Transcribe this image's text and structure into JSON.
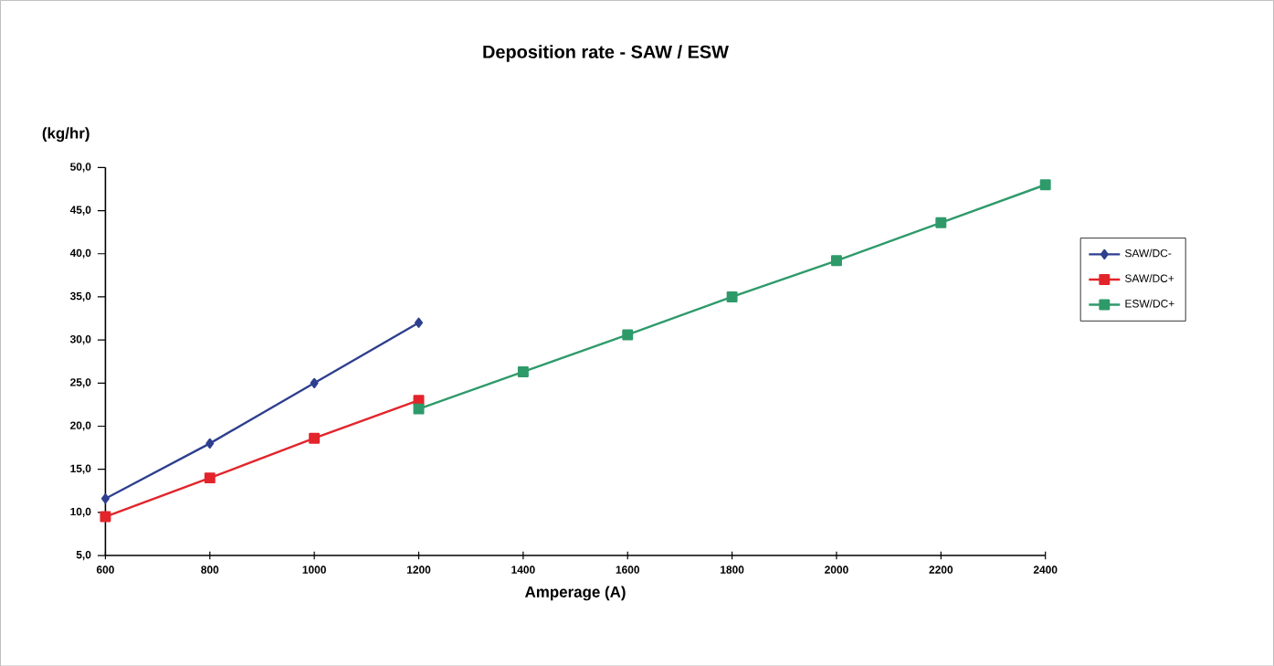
{
  "chart_data": {
    "type": "line",
    "title": "Deposition rate -  SAW / ESW",
    "xlabel": "Amperage (A)",
    "ylabel": "(kg/hr)",
    "xlim": [
      600,
      2400
    ],
    "xticks": [
      600,
      800,
      1000,
      1200,
      1400,
      1600,
      1800,
      2000,
      2200,
      2400
    ],
    "ylim": [
      5,
      50
    ],
    "yticks": [
      {
        "value": 5,
        "label": "5,0"
      },
      {
        "value": 10,
        "label": "10,0"
      },
      {
        "value": 15,
        "label": "15,0"
      },
      {
        "value": 20,
        "label": "20,0"
      },
      {
        "value": 25,
        "label": "25,0"
      },
      {
        "value": 30,
        "label": "30,0"
      },
      {
        "value": 35,
        "label": "35,0"
      },
      {
        "value": 40,
        "label": "40,0"
      },
      {
        "value": 45,
        "label": "45,0"
      },
      {
        "value": 50,
        "label": "50,0"
      }
    ],
    "grid": false,
    "legend": "right",
    "line_style": "solid",
    "series": [
      {
        "name": "SAW/DC-",
        "color": "#2e3f8f",
        "marker": "diamond",
        "x": [
          600,
          800,
          1000,
          1200
        ],
        "values": [
          11.6,
          18.0,
          25.0,
          32.0
        ]
      },
      {
        "name": "SAW/DC+",
        "color": "#e3242b",
        "marker": "square",
        "x": [
          600,
          800,
          1000,
          1200
        ],
        "values": [
          9.5,
          14.0,
          18.6,
          23.0
        ]
      },
      {
        "name": "ESW/DC+",
        "color": "#2e9a6a",
        "marker": "square",
        "x": [
          1200,
          1400,
          1600,
          1800,
          2000,
          2200,
          2400
        ],
        "values": [
          22.0,
          26.3,
          30.6,
          35.0,
          39.2,
          43.6,
          48.0
        ]
      }
    ]
  }
}
